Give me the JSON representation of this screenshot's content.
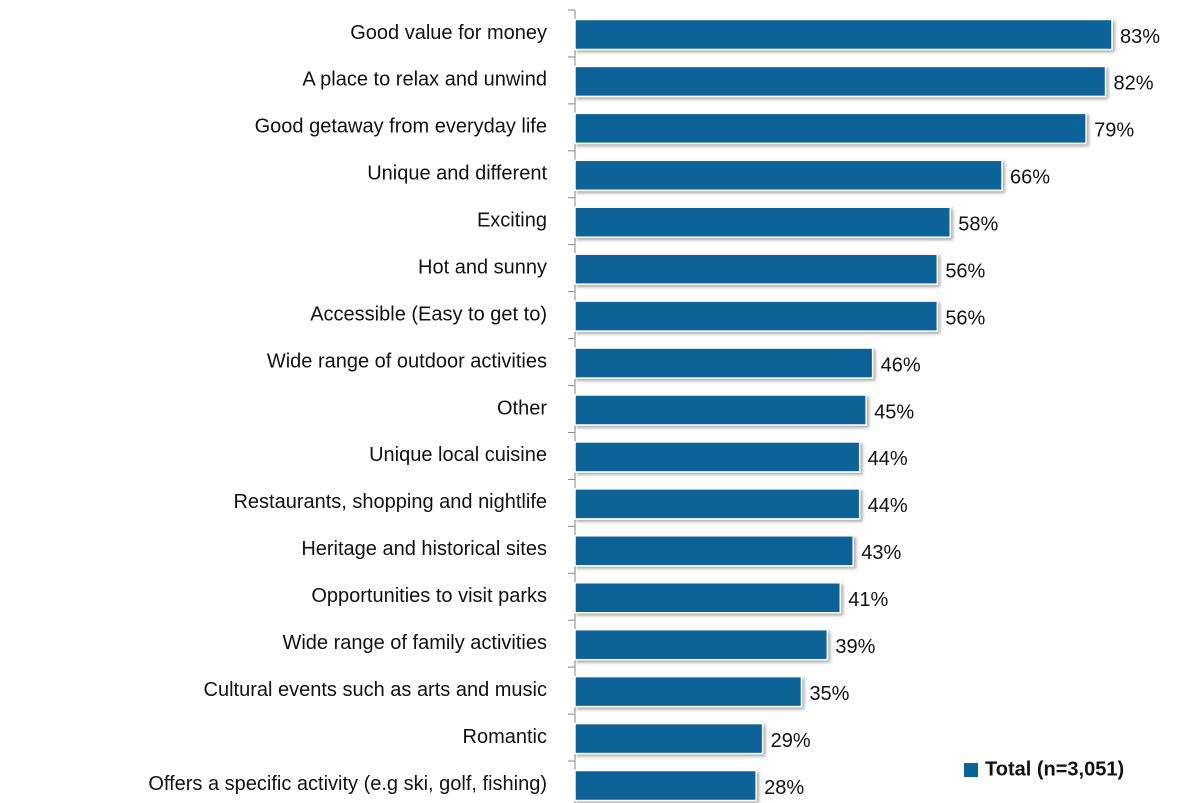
{
  "chart_data": {
    "type": "barh",
    "categories": [
      "Good value for money",
      "A place to relax and unwind",
      "Good getaway from everyday life",
      "Unique and different",
      "Exciting",
      "Hot and sunny",
      "Accessible (Easy to get to)",
      "Wide range of outdoor activities",
      "Other",
      "Unique local cuisine",
      "Restaurants, shopping and nightlife",
      "Heritage and historical sites",
      "Opportunities to visit parks",
      "Wide range of family activities",
      "Cultural events such as arts and music",
      "Romantic",
      "Offers a specific activity (e.g ski, golf, fishing)"
    ],
    "series": [
      {
        "name": "Total (n=3,051)",
        "color": "#0b6398",
        "values": [
          83,
          82,
          79,
          66,
          58,
          56,
          56,
          46,
          45,
          44,
          44,
          43,
          41,
          39,
          35,
          29,
          28
        ],
        "value_labels": [
          "83%",
          "82%",
          "79%",
          "66%",
          "58%",
          "56%",
          "56%",
          "46%",
          "45%",
          "44%",
          "44%",
          "43%",
          "41%",
          "39%",
          "35%",
          "29%",
          "28%"
        ]
      }
    ],
    "legend": "bottom-right"
  }
}
